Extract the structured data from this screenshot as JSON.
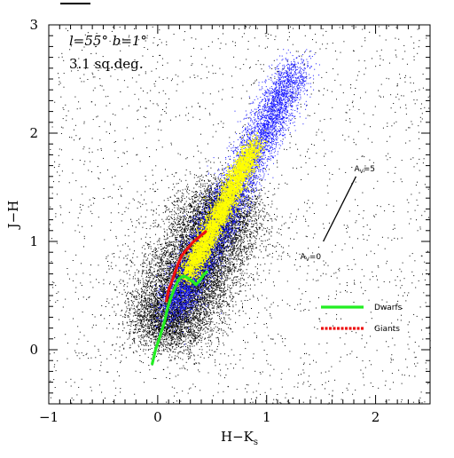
{
  "chart_data": {
    "type": "scatter",
    "xlabel": "H−K",
    "xlabel_sub": "s",
    "ylabel": "J−H",
    "xlim": [
      -1,
      2.5
    ],
    "ylim": [
      -0.5,
      3
    ],
    "x_ticks": [
      -1,
      0,
      1,
      2
    ],
    "y_ticks": [
      0,
      1,
      2,
      3
    ],
    "x_tick_labels": [
      "−1",
      "0",
      "1",
      "2"
    ],
    "y_tick_labels": [
      "0",
      "1",
      "2",
      "3"
    ],
    "annotations": {
      "field": "l=55° b=1°",
      "area": "3.1 sq.deg."
    },
    "reddening_vector": {
      "start_label": "A",
      "start_label_sub": "V",
      "start_label_value": "=0",
      "end_label": "A",
      "end_label_sub": "V",
      "end_label_value": "=5",
      "start": [
        1.52,
        1.0
      ],
      "end": [
        1.82,
        1.6
      ]
    },
    "density_layers": [
      {
        "name": "low-density",
        "color": "#000000"
      },
      {
        "name": "medium-density",
        "color": "#1a1aff"
      },
      {
        "name": "high-density",
        "color": "#ffff00"
      }
    ],
    "series": [
      {
        "name": "Dwarfs",
        "color": "#22ee22",
        "style": "solid",
        "points": [
          [
            -0.05,
            -0.13
          ],
          [
            -0.02,
            0.0
          ],
          [
            0.02,
            0.12
          ],
          [
            0.06,
            0.25
          ],
          [
            0.09,
            0.38
          ],
          [
            0.11,
            0.45
          ],
          [
            0.14,
            0.53
          ],
          [
            0.17,
            0.6
          ],
          [
            0.2,
            0.66
          ],
          [
            0.24,
            0.68
          ],
          [
            0.28,
            0.66
          ],
          [
            0.32,
            0.63
          ],
          [
            0.35,
            0.6
          ],
          [
            0.38,
            0.63
          ],
          [
            0.42,
            0.69
          ],
          [
            0.45,
            0.72
          ]
        ]
      },
      {
        "name": "Giants",
        "color": "#ee1111",
        "style": "dashed",
        "points": [
          [
            0.08,
            0.45
          ],
          [
            0.1,
            0.55
          ],
          [
            0.13,
            0.63
          ],
          [
            0.16,
            0.72
          ],
          [
            0.19,
            0.8
          ],
          [
            0.22,
            0.87
          ],
          [
            0.27,
            0.93
          ],
          [
            0.32,
            0.99
          ],
          [
            0.38,
            1.04
          ],
          [
            0.44,
            1.09
          ]
        ]
      }
    ],
    "legend": [
      {
        "label": "Dwarfs",
        "color": "#22ee22",
        "style": "solid"
      },
      {
        "label": "Giants",
        "color": "#ee1111",
        "style": "dashed"
      }
    ],
    "legend_placement": "lower-right",
    "grid": false
  }
}
